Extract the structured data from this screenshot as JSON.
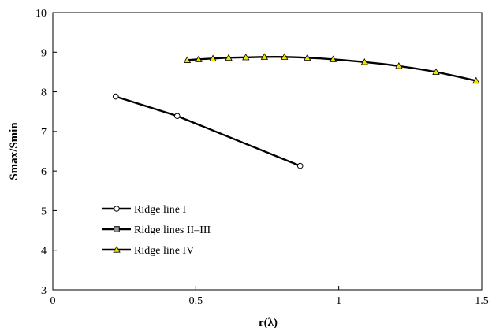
{
  "chart_data": {
    "type": "line",
    "xlabel": "r(λ)",
    "ylabel": "Smax/Smin",
    "xlim": [
      0,
      1.5
    ],
    "ylim": [
      3,
      10
    ],
    "xticks": [
      0,
      0.5,
      1,
      1.5
    ],
    "xtick_labels": [
      "0",
      "0.5",
      "1",
      "1.5"
    ],
    "yticks": [
      3,
      4,
      5,
      6,
      7,
      8,
      9,
      10
    ],
    "ytick_labels": [
      "3",
      "4",
      "5",
      "6",
      "7",
      "8",
      "9",
      "10"
    ],
    "grid": false,
    "legend_position": "left",
    "series": [
      {
        "name": "Ridge line I",
        "marker": "circle",
        "marker_color": "#ffffff",
        "line_color": "#000000",
        "points": [
          [
            0.22,
            7.88
          ],
          [
            0.435,
            7.39
          ],
          [
            0.865,
            6.13
          ]
        ]
      },
      {
        "name": "Ridge lines II–III",
        "marker": "square",
        "marker_color": "#999999",
        "line_color": "#000000",
        "points": []
      },
      {
        "name": "Ridge line IV",
        "marker": "triangle",
        "marker_color": "#f2e600",
        "line_color": "#000000",
        "points": [
          [
            0.47,
            8.8
          ],
          [
            0.51,
            8.82
          ],
          [
            0.56,
            8.84
          ],
          [
            0.615,
            8.86
          ],
          [
            0.675,
            8.87
          ],
          [
            0.74,
            8.88
          ],
          [
            0.81,
            8.88
          ],
          [
            0.89,
            8.86
          ],
          [
            0.98,
            8.82
          ],
          [
            1.09,
            8.75
          ],
          [
            1.21,
            8.65
          ],
          [
            1.34,
            8.5
          ],
          [
            1.48,
            8.28
          ]
        ]
      }
    ]
  }
}
